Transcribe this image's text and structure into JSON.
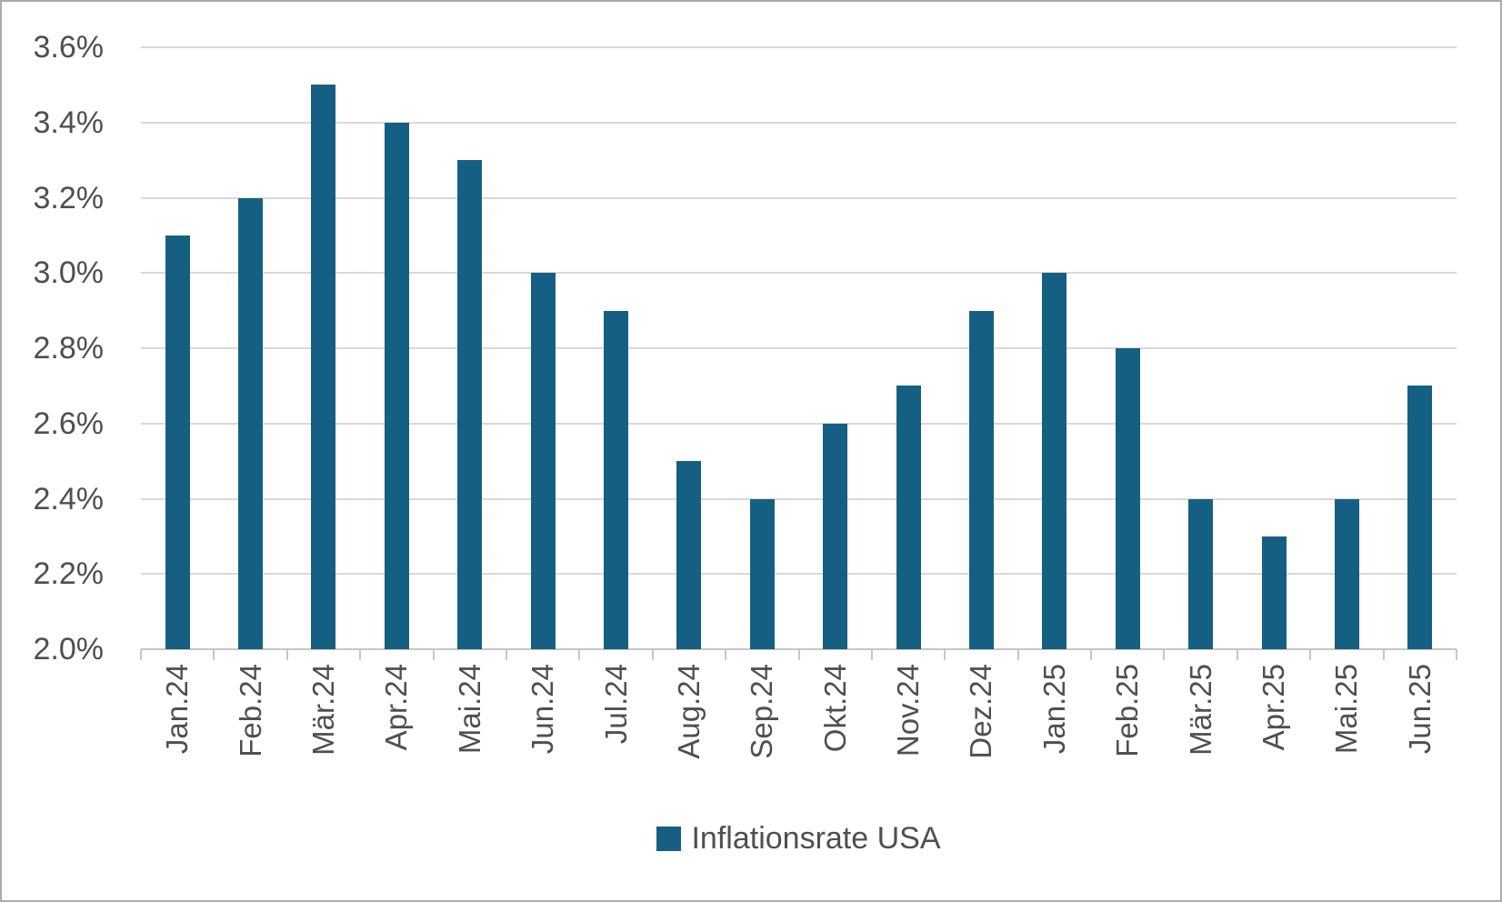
{
  "chart_data": {
    "type": "bar",
    "title": "",
    "categories": [
      "Jan.24",
      "Feb.24",
      "Mär.24",
      "Apr.24",
      "Mai.24",
      "Jun.24",
      "Jul.24",
      "Aug.24",
      "Sep.24",
      "Okt.24",
      "Nov.24",
      "Dez.24",
      "Jan.25",
      "Feb.25",
      "Mär.25",
      "Apr.25",
      "Mai.25",
      "Jun.25"
    ],
    "series": [
      {
        "name": "Inflationsrate USA",
        "values": [
          3.1,
          3.2,
          3.5,
          3.4,
          3.3,
          3.0,
          2.9,
          2.5,
          2.4,
          2.6,
          2.7,
          2.9,
          3.0,
          2.8,
          2.4,
          2.3,
          2.4,
          2.7
        ]
      }
    ],
    "xlabel": "",
    "ylabel": "",
    "ylim": [
      2.0,
      3.6
    ],
    "ytick_step": 0.2,
    "ytick_labels": [
      "3.6%",
      "3.4%",
      "3.2%",
      "3.0%",
      "2.8%",
      "2.6%",
      "2.4%",
      "2.2%",
      "2.0%"
    ],
    "grid": true,
    "legend_position": "bottom",
    "colors": {
      "bar": "#156082",
      "gridline": "#D9D9D9",
      "axis": "#C6C6C6",
      "label": "#4F4F4F",
      "frame": "#ABABAB"
    }
  },
  "legend": {
    "label": "Inflationsrate USA"
  }
}
